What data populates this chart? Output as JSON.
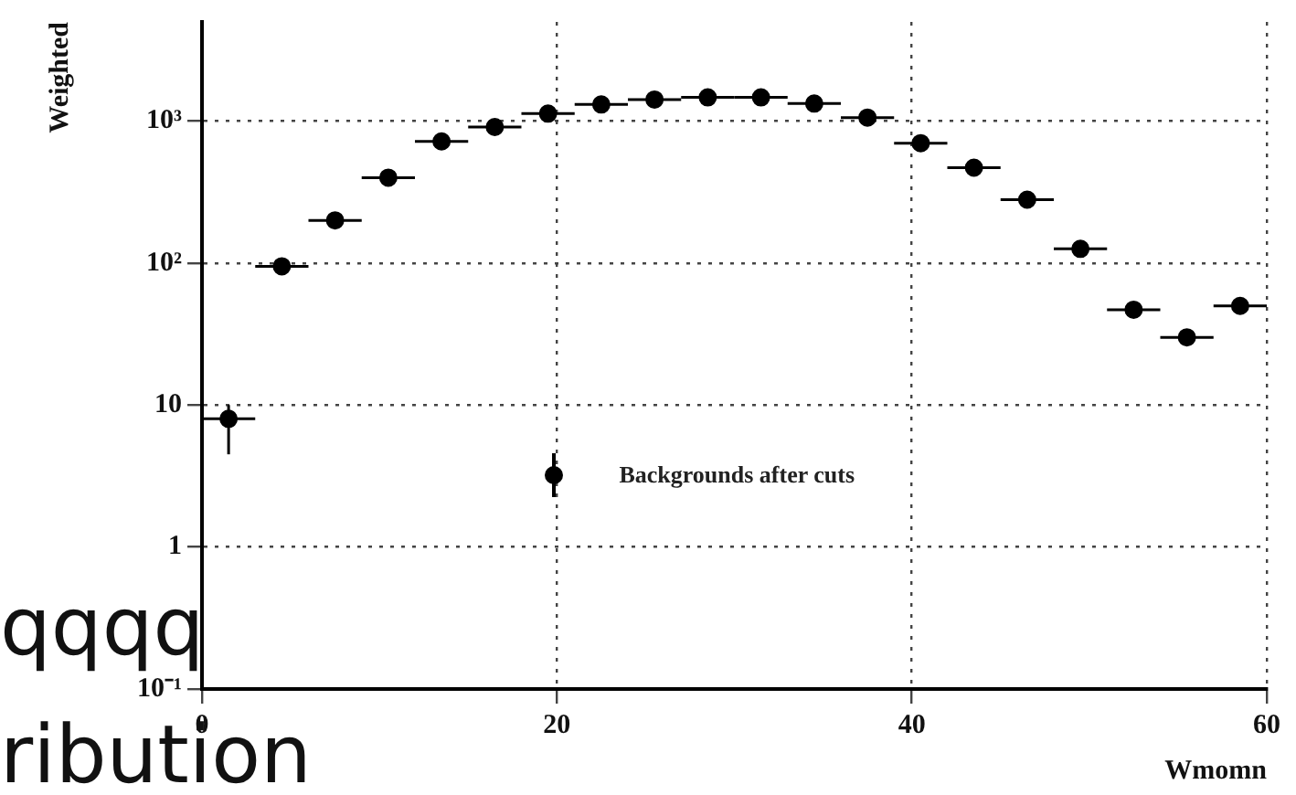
{
  "chart_data": {
    "type": "scatter",
    "xlabel": "Wmomn",
    "ylabel": "Weighted",
    "x": [
      1.5,
      4.5,
      7.5,
      10.5,
      13.5,
      16.5,
      19.5,
      22.5,
      25.5,
      28.5,
      31.5,
      34.5,
      37.5,
      40.5,
      43.5,
      46.5,
      49.5,
      52.5,
      55.5,
      58.5
    ],
    "series": [
      {
        "name": "Backgrounds after cuts",
        "color": "#000000",
        "values": [
          8,
          95,
          200,
          400,
          720,
          910,
          1130,
          1310,
          1420,
          1470,
          1470,
          1330,
          1060,
          700,
          470,
          280,
          126,
          47,
          30,
          50
        ],
        "errors": [
          [
            4.5,
            10
          ],
          null,
          null,
          null,
          null,
          null,
          null,
          null,
          null,
          null,
          null,
          null,
          null,
          null,
          null,
          null,
          null,
          null,
          null,
          null
        ],
        "xerrors": [
          1.5,
          1.5,
          1.5,
          1.5,
          1.5,
          1.5,
          1.5,
          1.5,
          1.5,
          1.5,
          1.5,
          1.5,
          1.5,
          1.5,
          1.5,
          1.5,
          1.5,
          1.5,
          1.5,
          1.5
        ]
      }
    ],
    "xlim": [
      0,
      60
    ],
    "xticks": [
      0,
      20,
      40,
      60
    ],
    "ylim": [
      0.1,
      5000
    ],
    "yticks": [
      {
        "value": 0.1,
        "label": "10⁻¹"
      },
      1,
      10,
      {
        "value": 100,
        "label": "10²"
      },
      {
        "value": 1000,
        "label": "10³"
      }
    ],
    "log": "y",
    "grid": true,
    "marker": "circle",
    "legend": "bottom",
    "annotations": [
      "qqqq",
      "ribution"
    ]
  }
}
